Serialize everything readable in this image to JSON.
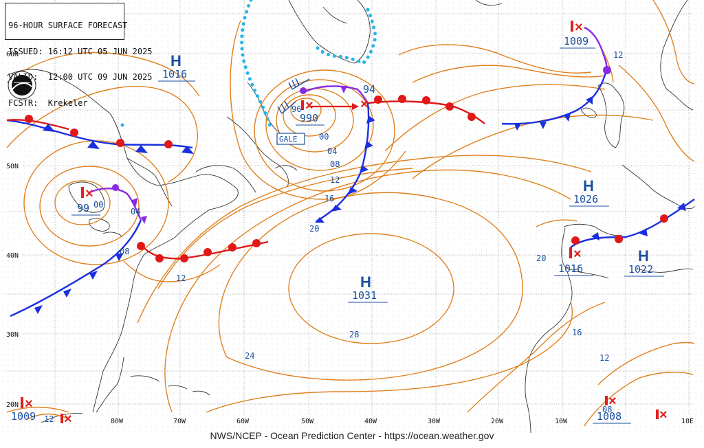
{
  "header": {
    "title": "96-HOUR SURFACE FORECAST",
    "issued": "ISSUED: 16:12 UTC 05 JUN 2025",
    "valid": "VALID:  12:00 UTC 09 JUN 2025",
    "forecaster": "FCSTR:  Krekeler"
  },
  "credit": "NWS/NCEP - Ocean Prediction Center - https://ocean.weather.gov",
  "gale_label": "GALE",
  "lat_labels": [
    "60N",
    "50N",
    "40N",
    "30N",
    "20N"
  ],
  "lon_labels": [
    "80W",
    "70W",
    "60W",
    "50W",
    "40W",
    "30W",
    "20W",
    "10W",
    "10E"
  ],
  "highs": [
    {
      "letter": "H",
      "value": "1016"
    },
    {
      "letter": "H",
      "value": "1026"
    },
    {
      "letter": "H",
      "value": "1031"
    },
    {
      "letter": "H",
      "value": "1022"
    }
  ],
  "lows": [
    {
      "value": "990"
    },
    {
      "value": "94"
    },
    {
      "value": "1009"
    },
    {
      "value": "99"
    },
    {
      "value": "1016"
    },
    {
      "value": "1008"
    },
    {
      "value": "1009"
    }
  ],
  "isobar_labels": [
    "96",
    "00",
    "04",
    "08",
    "12",
    "16",
    "20",
    "24",
    "28",
    "20",
    "16",
    "12",
    "12",
    "00",
    "04",
    "08",
    "12",
    "12",
    "08"
  ],
  "colors": {
    "isobar": "#e0801e",
    "warm": "#e01818",
    "cold": "#1a2fe0",
    "occluded": "#8a2be2",
    "ice": "#25b5e8",
    "grid": "#9a9a9a",
    "coast": "#333333"
  }
}
